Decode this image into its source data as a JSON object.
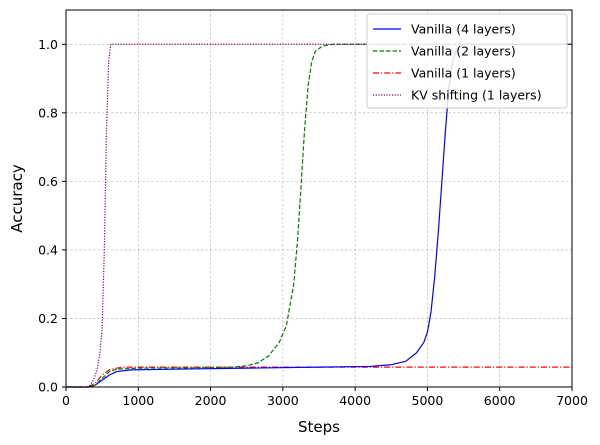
{
  "chart_data": {
    "type": "line",
    "xlabel": "Steps",
    "ylabel": "Accuracy",
    "xlim": [
      0,
      7000
    ],
    "ylim": [
      0,
      1.1
    ],
    "xticks": [
      0,
      1000,
      2000,
      3000,
      4000,
      5000,
      6000,
      7000
    ],
    "yticks": [
      0.0,
      0.2,
      0.4,
      0.6,
      0.8,
      1.0
    ],
    "ytick_labels": [
      "0.0",
      "0.2",
      "0.4",
      "0.6",
      "0.8",
      "1.0"
    ],
    "grid": true,
    "legend_position": "top-right",
    "series": [
      {
        "name": "Vanilla (4 layers)",
        "color": "#0000ff",
        "dash": "solid",
        "points": [
          [
            0,
            0
          ],
          [
            300,
            0
          ],
          [
            400,
            0.005
          ],
          [
            500,
            0.02
          ],
          [
            600,
            0.035
          ],
          [
            700,
            0.045
          ],
          [
            900,
            0.05
          ],
          [
            1500,
            0.052
          ],
          [
            2500,
            0.055
          ],
          [
            3500,
            0.058
          ],
          [
            4200,
            0.06
          ],
          [
            4500,
            0.065
          ],
          [
            4700,
            0.075
          ],
          [
            4850,
            0.1
          ],
          [
            4950,
            0.13
          ],
          [
            5000,
            0.16
          ],
          [
            5050,
            0.22
          ],
          [
            5100,
            0.32
          ],
          [
            5150,
            0.45
          ],
          [
            5200,
            0.6
          ],
          [
            5250,
            0.75
          ],
          [
            5300,
            0.88
          ],
          [
            5350,
            0.95
          ],
          [
            5400,
            0.985
          ],
          [
            5500,
            1.0
          ],
          [
            7000,
            1.0
          ]
        ]
      },
      {
        "name": "Vanilla (2 layers)",
        "color": "#008000",
        "dash": "dashed",
        "points": [
          [
            0,
            0
          ],
          [
            300,
            0
          ],
          [
            400,
            0.005
          ],
          [
            500,
            0.025
          ],
          [
            600,
            0.045
          ],
          [
            700,
            0.052
          ],
          [
            1000,
            0.055
          ],
          [
            1800,
            0.056
          ],
          [
            2300,
            0.058
          ],
          [
            2500,
            0.062
          ],
          [
            2650,
            0.07
          ],
          [
            2800,
            0.09
          ],
          [
            2950,
            0.13
          ],
          [
            3050,
            0.18
          ],
          [
            3150,
            0.3
          ],
          [
            3200,
            0.42
          ],
          [
            3250,
            0.58
          ],
          [
            3300,
            0.75
          ],
          [
            3350,
            0.88
          ],
          [
            3400,
            0.95
          ],
          [
            3450,
            0.98
          ],
          [
            3550,
            0.995
          ],
          [
            3700,
            1.0
          ],
          [
            7000,
            1.0
          ]
        ]
      },
      {
        "name": "Vanilla (1 layers)",
        "color": "#ff0000",
        "dash": "dashdot",
        "points": [
          [
            0,
            0
          ],
          [
            300,
            0
          ],
          [
            400,
            0.01
          ],
          [
            500,
            0.035
          ],
          [
            600,
            0.05
          ],
          [
            700,
            0.055
          ],
          [
            800,
            0.058
          ],
          [
            7000,
            0.058
          ]
        ]
      },
      {
        "name": "KV shifting (1 layers)",
        "color": "#800080",
        "dash": "dotted",
        "points": [
          [
            0,
            0
          ],
          [
            320,
            0
          ],
          [
            380,
            0.02
          ],
          [
            430,
            0.05
          ],
          [
            470,
            0.1
          ],
          [
            500,
            0.17
          ],
          [
            530,
            0.4
          ],
          [
            560,
            0.75
          ],
          [
            590,
            0.95
          ],
          [
            620,
            1.0
          ],
          [
            7000,
            1.0
          ]
        ]
      }
    ]
  }
}
